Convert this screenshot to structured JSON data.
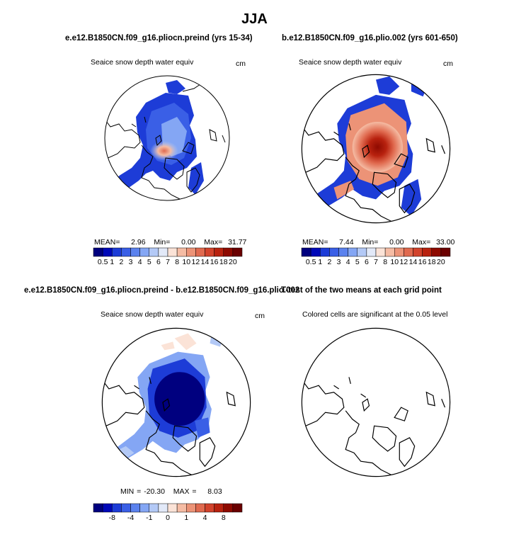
{
  "figure_title": "JJA",
  "panels": [
    {
      "id": "preind",
      "title": "e.e12.B1850CN.f09_g16.pliocn.preind (yrs 15-34)",
      "field_label": "Seaice snow depth water equiv",
      "units": "cm",
      "stats": {
        "mean_label": "MEAN=",
        "mean": "2.96",
        "min_label": "Min=",
        "min": "0.00",
        "max_label": "Max=",
        "max": "31.77"
      }
    },
    {
      "id": "plio",
      "title": "b.e12.B1850CN.f09_g16.plio.002 (yrs 601-650)",
      "field_label": "Seaice snow depth water equiv",
      "units": "cm",
      "stats": {
        "mean_label": "MEAN=",
        "mean": "7.44",
        "min_label": "Min=",
        "min": "0.00",
        "max_label": "Max=",
        "max": "33.00"
      }
    },
    {
      "id": "diff",
      "title": "e.e12.B1850CN.f09_g16.pliocn.preind - b.e12.B1850CN.f09_g16.plio.002",
      "field_label": "Seaice snow depth water equiv",
      "units": "cm",
      "stats": {
        "min_label": "MIN =",
        "min": "-20.30",
        "max_label": "MAX =",
        "max": "8.03"
      }
    },
    {
      "id": "ttest",
      "title": "T-test of the two means at each grid point",
      "field_label": "Colored cells are significant at the 0.05 level"
    }
  ],
  "colors": {
    "scale": [
      "#00007f",
      "#0008b8",
      "#1d3cd7",
      "#3a5fe6",
      "#5b82ee",
      "#84a6f4",
      "#b3c9f6",
      "#e2e9f8",
      "#fbe3d7",
      "#f5bca4",
      "#ec9377",
      "#e06a4f",
      "#d2432c",
      "#b8220f",
      "#8e0a00",
      "#6a0000"
    ],
    "map_face": "#ffffff",
    "coast": "#000000"
  },
  "chart_data": [
    {
      "type": "heatmap",
      "title": "e.e12.B1850CN.f09_g16.pliocn.preind (yrs 15-34)",
      "variable": "Seaice snow depth water equiv",
      "units": "cm",
      "projection": "north polar stereographic",
      "colorbar_levels": [
        "0.5",
        "1",
        "2",
        "3",
        "4",
        "5",
        "6",
        "7",
        "8",
        "10",
        "12",
        "14",
        "16",
        "18",
        "20"
      ],
      "mean": 2.96,
      "min": 0.0,
      "max": 31.77
    },
    {
      "type": "heatmap",
      "title": "b.e12.B1850CN.f09_g16.plio.002 (yrs 601-650)",
      "variable": "Seaice snow depth water equiv",
      "units": "cm",
      "projection": "north polar stereographic",
      "colorbar_levels": [
        "0.5",
        "1",
        "2",
        "3",
        "4",
        "5",
        "6",
        "7",
        "8",
        "10",
        "12",
        "14",
        "16",
        "18",
        "20"
      ],
      "mean": 7.44,
      "min": 0.0,
      "max": 33.0
    },
    {
      "type": "heatmap",
      "title": "e.e12.B1850CN.f09_g16.pliocn.preind - b.e12.B1850CN.f09_g16.plio.002",
      "variable": "Seaice snow depth water equiv",
      "units": "cm",
      "projection": "north polar stereographic",
      "colorbar_levels": [
        "-8",
        "-4",
        "-1",
        "0",
        "1",
        "4",
        "8"
      ],
      "min": -20.3,
      "max": 8.03
    },
    {
      "type": "heatmap",
      "title": "T-test of the two means at each grid point",
      "variable": "Colored cells are significant at the 0.05 level",
      "projection": "north polar stereographic"
    }
  ],
  "colorbars": {
    "abs": {
      "labels": [
        "0.5",
        "1",
        "2",
        "3",
        "4",
        "5",
        "6",
        "7",
        "8",
        "10",
        "12",
        "14",
        "16",
        "18",
        "20"
      ]
    },
    "diff": {
      "labels": [
        "-8",
        "-4",
        "-1",
        "0",
        "1",
        "4",
        "8"
      ]
    }
  }
}
